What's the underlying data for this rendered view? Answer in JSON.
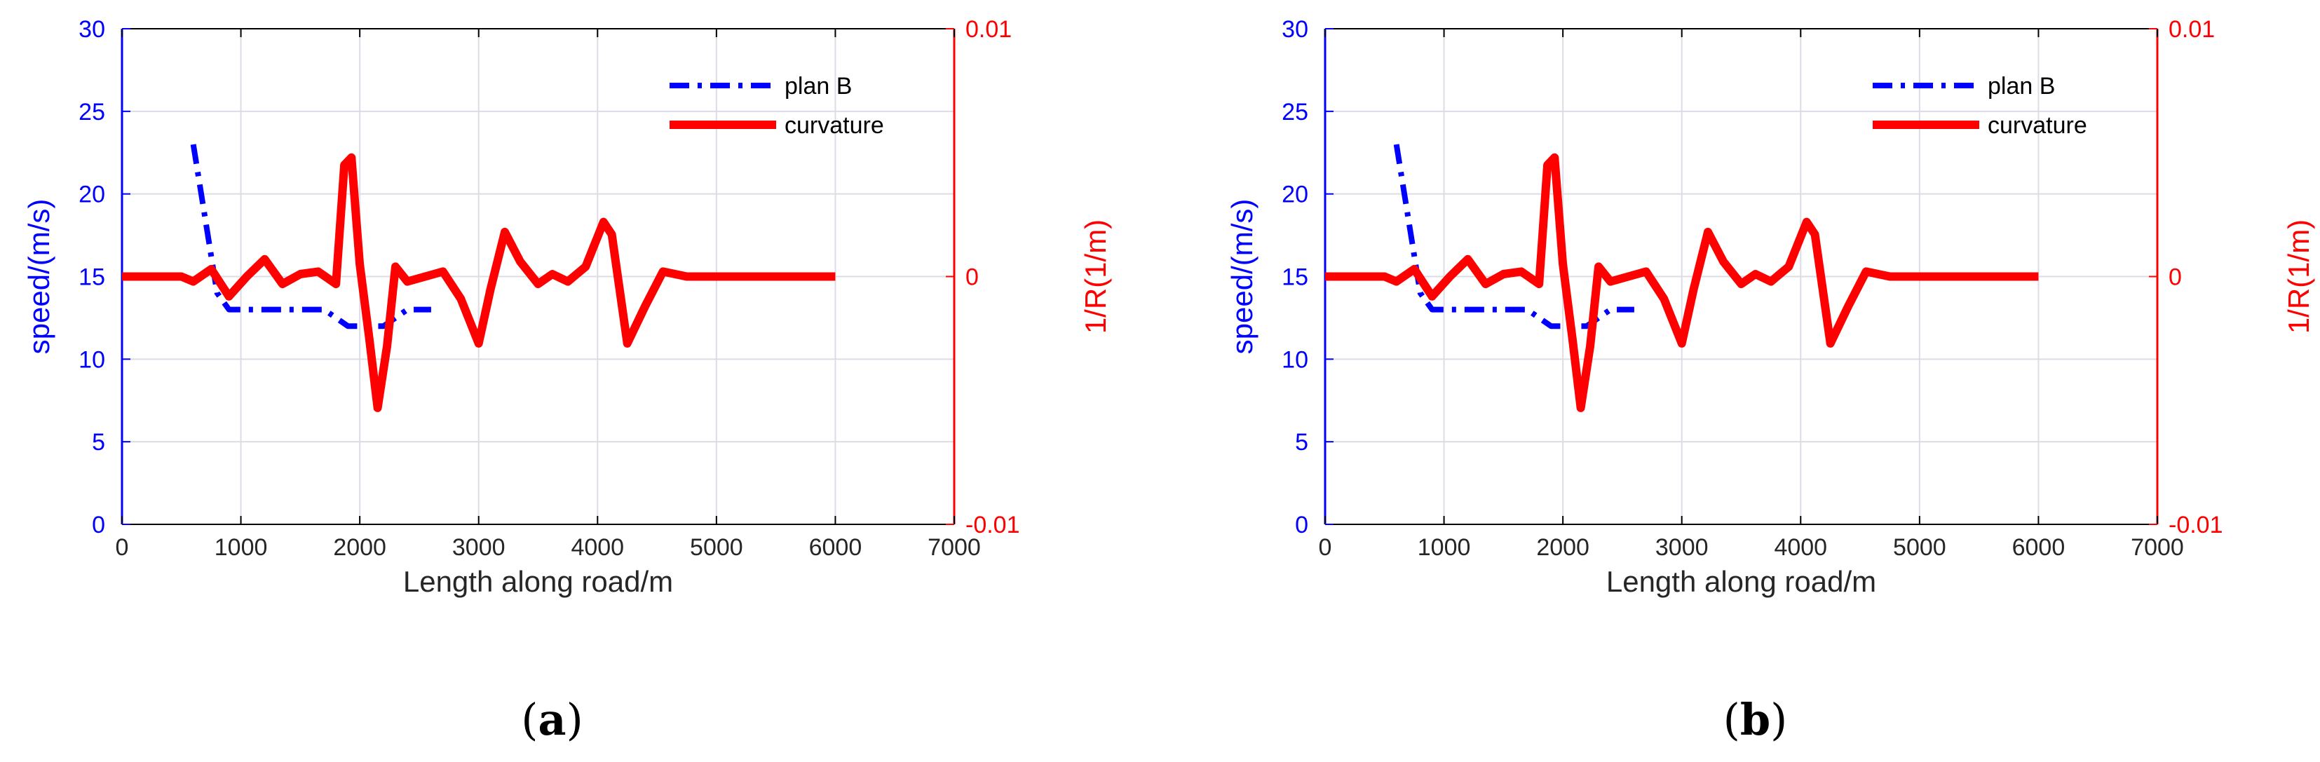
{
  "chart_data": [
    {
      "panel_label": "(a)",
      "panel_letter": "a",
      "type": "line",
      "xlabel": "Length along road/m",
      "ylabel_left": "speed/(m/s)",
      "ylabel_right": "1/R(1/m)",
      "xlim": [
        0,
        7000
      ],
      "ylim_left": [
        0,
        30
      ],
      "ylim_right": [
        -0.01,
        0.01
      ],
      "x_ticks": [
        0,
        1000,
        2000,
        3000,
        4000,
        5000,
        6000,
        7000
      ],
      "x_tick_labels": [
        "0",
        "1000",
        "2000",
        "3000",
        "4000",
        "5000",
        "6000",
        "7000"
      ],
      "y_left_ticks": [
        0,
        5,
        10,
        15,
        20,
        25,
        30
      ],
      "y_left_tick_labels": [
        "0",
        "5",
        "10",
        "15",
        "20",
        "25",
        "30"
      ],
      "y_right_ticks": [
        -0.01,
        0,
        0.01
      ],
      "y_right_tick_labels": [
        "-0.01",
        "0",
        "0.01"
      ],
      "grid": true,
      "legend_position": "top-right",
      "series": [
        {
          "name": "plan B",
          "axis": "left",
          "color": "#0000ff",
          "style": "dashdot",
          "x": [
            600,
            800,
            900,
            1000,
            1200,
            1400,
            1600,
            1700,
            1800,
            1900,
            2000,
            2100,
            2200,
            2300,
            2400,
            2500,
            2600
          ],
          "y": [
            23,
            14,
            13,
            13,
            13,
            13,
            13,
            13,
            12.5,
            12,
            12,
            12,
            12,
            12.5,
            13,
            13,
            13
          ]
        },
        {
          "name": "curvature",
          "axis": "right",
          "color": "#ff0000",
          "style": "solid",
          "x": [
            0,
            500,
            600,
            750,
            900,
            1050,
            1200,
            1350,
            1500,
            1650,
            1800,
            1870,
            1930,
            2000,
            2080,
            2150,
            2230,
            2300,
            2400,
            2550,
            2700,
            2850,
            3000,
            3100,
            3220,
            3350,
            3500,
            3620,
            3750,
            3900,
            4050,
            4120,
            4250,
            4400,
            4550,
            4750,
            6000
          ],
          "y": [
            0,
            0,
            -0.0002,
            0.0003,
            -0.0008,
            0,
            0.0007,
            -0.0003,
            0.0001,
            0.0002,
            -0.0003,
            0.0045,
            0.0048,
            0.0005,
            -0.0025,
            -0.0053,
            -0.0028,
            0.0004,
            -0.0002,
            0,
            0.0002,
            -0.0009,
            -0.0027,
            -0.0005,
            0.0018,
            0.0006,
            -0.0003,
            0.0001,
            -0.0002,
            0.0004,
            0.0022,
            0.0017,
            -0.0027,
            -0.0012,
            0.0002,
            0,
            0
          ]
        }
      ]
    },
    {
      "panel_label": "(b)",
      "panel_letter": "b",
      "type": "line",
      "xlabel": "Length along road/m",
      "ylabel_left": "speed/(m/s)",
      "ylabel_right": "1/R(1/m)",
      "xlim": [
        0,
        7000
      ],
      "ylim_left": [
        0,
        30
      ],
      "ylim_right": [
        -0.01,
        0.01
      ],
      "x_ticks": [
        0,
        1000,
        2000,
        3000,
        4000,
        5000,
        6000,
        7000
      ],
      "x_tick_labels": [
        "0",
        "1000",
        "2000",
        "3000",
        "4000",
        "5000",
        "6000",
        "7000"
      ],
      "y_left_ticks": [
        0,
        5,
        10,
        15,
        20,
        25,
        30
      ],
      "y_left_tick_labels": [
        "0",
        "5",
        "10",
        "15",
        "20",
        "25",
        "30"
      ],
      "y_right_ticks": [
        -0.01,
        0,
        0.01
      ],
      "y_right_tick_labels": [
        "-0.01",
        "0",
        "0.01"
      ],
      "grid": true,
      "legend_position": "top-right",
      "series": [
        {
          "name": "plan B",
          "axis": "left",
          "color": "#0000ff",
          "style": "dashdot",
          "x": [
            600,
            800,
            900,
            1000,
            1200,
            1400,
            1600,
            1700,
            1800,
            1900,
            2000,
            2100,
            2200,
            2300,
            2400,
            2500,
            2600
          ],
          "y": [
            23,
            14,
            13,
            13,
            13,
            13,
            13,
            13,
            12.5,
            12,
            12,
            12,
            12,
            12.5,
            13,
            13,
            13
          ]
        },
        {
          "name": "curvature",
          "axis": "right",
          "color": "#ff0000",
          "style": "solid",
          "x": [
            0,
            500,
            600,
            750,
            900,
            1050,
            1200,
            1350,
            1500,
            1650,
            1800,
            1870,
            1930,
            2000,
            2080,
            2150,
            2230,
            2300,
            2400,
            2550,
            2700,
            2850,
            3000,
            3100,
            3220,
            3350,
            3500,
            3620,
            3750,
            3900,
            4050,
            4120,
            4250,
            4400,
            4550,
            4750,
            6000
          ],
          "y": [
            0,
            0,
            -0.0002,
            0.0003,
            -0.0008,
            0,
            0.0007,
            -0.0003,
            0.0001,
            0.0002,
            -0.0003,
            0.0045,
            0.0048,
            0.0005,
            -0.0025,
            -0.0053,
            -0.0028,
            0.0004,
            -0.0002,
            0,
            0.0002,
            -0.0009,
            -0.0027,
            -0.0005,
            0.0018,
            0.0006,
            -0.0003,
            0.0001,
            -0.0002,
            0.0004,
            0.0022,
            0.0017,
            -0.0027,
            -0.0012,
            0.0002,
            0,
            0
          ]
        }
      ]
    }
  ]
}
